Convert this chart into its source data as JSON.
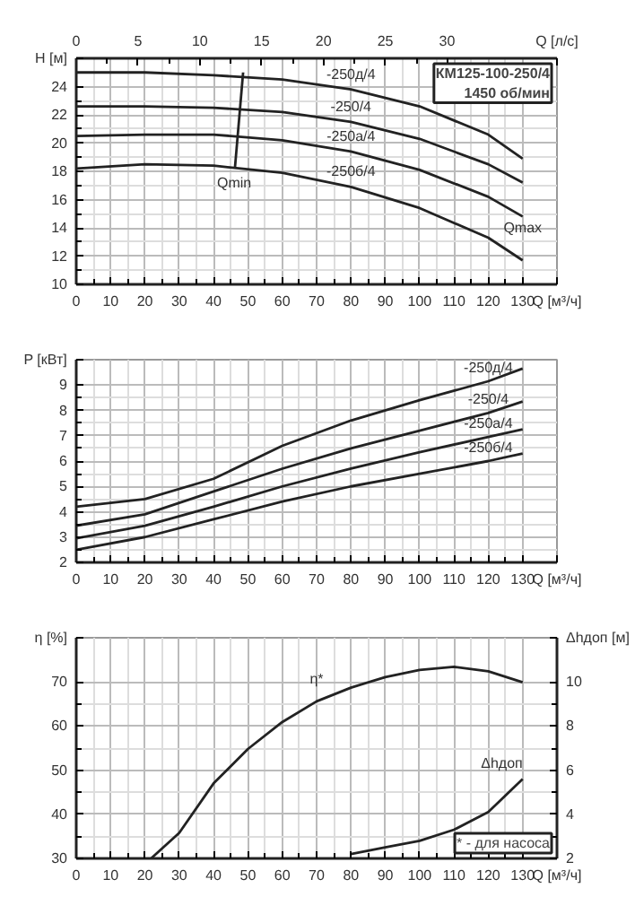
{
  "chart_data": [
    {
      "type": "line",
      "xlabel": "Q [м³/ч]",
      "ylabel": "H [м]",
      "x2label": "Q [л/с]",
      "xlim": [
        0,
        140
      ],
      "ylim": [
        10,
        26
      ],
      "x2lim": [
        0,
        38.89
      ],
      "xticks": [
        0,
        10,
        20,
        30,
        40,
        50,
        60,
        70,
        80,
        90,
        100,
        110,
        120,
        130
      ],
      "yticks": [
        10,
        12,
        14,
        16,
        18,
        20,
        22,
        24
      ],
      "x2ticks": [
        0,
        5,
        10,
        15,
        20,
        25,
        30
      ],
      "grid": true,
      "annotations": [
        "КМ125-100-250/4\n1450 об/мин",
        {
          "text": "Qmin",
          "x": 46,
          "y": 18
        },
        {
          "text": "Qmax",
          "x": 130,
          "y": 14.8
        }
      ],
      "series": [
        {
          "name": "-250д/4",
          "color": "#222222",
          "x": [
            0,
            20,
            40,
            60,
            80,
            100,
            120,
            130
          ],
          "values": [
            25.0,
            25.0,
            24.8,
            24.5,
            23.8,
            22.6,
            20.6,
            18.9
          ]
        },
        {
          "name": "-250/4",
          "color": "#222222",
          "x": [
            0,
            20,
            40,
            60,
            80,
            100,
            120,
            130
          ],
          "values": [
            22.6,
            22.6,
            22.5,
            22.2,
            21.5,
            20.3,
            18.5,
            17.2
          ]
        },
        {
          "name": "-250а/4",
          "color": "#222222",
          "x": [
            0,
            20,
            40,
            60,
            80,
            100,
            120,
            130
          ],
          "values": [
            20.5,
            20.6,
            20.6,
            20.2,
            19.4,
            18.1,
            16.2,
            14.8
          ]
        },
        {
          "name": "-250б/4",
          "color": "#222222",
          "x": [
            0,
            20,
            40,
            60,
            80,
            100,
            120,
            130
          ],
          "values": [
            18.2,
            18.5,
            18.4,
            17.9,
            16.9,
            15.4,
            13.3,
            11.7
          ]
        },
        {
          "color": "#222222",
          "x": [
            48.6,
            46.2
          ],
          "values": [
            25.0,
            18.2
          ]
        }
      ]
    },
    {
      "type": "line",
      "xlabel": "Q [м³/ч]",
      "ylabel": "P [кВт]",
      "xlim": [
        0,
        140
      ],
      "ylim": [
        2,
        10
      ],
      "xticks": [
        0,
        10,
        20,
        30,
        40,
        50,
        60,
        70,
        80,
        90,
        100,
        110,
        120,
        130
      ],
      "yticks": [
        2,
        3,
        4,
        5,
        6,
        7,
        8,
        9
      ],
      "grid": true,
      "series": [
        {
          "name": "-250д/4",
          "color": "#222222",
          "x": [
            0,
            20,
            40,
            60,
            80,
            100,
            120,
            130
          ],
          "values": [
            4.2,
            4.5,
            5.3,
            6.6,
            7.6,
            8.4,
            9.15,
            9.65
          ]
        },
        {
          "name": "-250/4",
          "color": "#222222",
          "x": [
            0,
            20,
            40,
            60,
            80,
            100,
            120,
            130
          ],
          "values": [
            3.45,
            3.9,
            4.8,
            5.7,
            6.5,
            7.2,
            7.9,
            8.35
          ]
        },
        {
          "name": "-250а/4",
          "color": "#222222",
          "x": [
            0,
            20,
            40,
            60,
            80,
            100,
            120,
            130
          ],
          "values": [
            2.95,
            3.45,
            4.2,
            5.0,
            5.7,
            6.35,
            6.95,
            7.25
          ]
        },
        {
          "name": "-250б/4",
          "color": "#222222",
          "x": [
            0,
            20,
            40,
            60,
            80,
            100,
            120,
            130
          ],
          "values": [
            2.5,
            3.0,
            3.7,
            4.4,
            5.0,
            5.5,
            6.0,
            6.3
          ]
        }
      ]
    },
    {
      "type": "line",
      "xlabel": "Q [м³/ч]",
      "ylabel": "η [%]",
      "y2label": "Δhдоп [м]",
      "xlim": [
        0,
        140
      ],
      "ylim": [
        30,
        80
      ],
      "y2lim": [
        2,
        12
      ],
      "xticks": [
        0,
        10,
        20,
        30,
        40,
        50,
        60,
        70,
        80,
        90,
        100,
        110,
        120,
        130
      ],
      "yticks": [
        30,
        40,
        50,
        60,
        70
      ],
      "y2ticks": [
        2,
        4,
        6,
        8,
        10
      ],
      "grid": true,
      "annotations": [
        "* - для насоса"
      ],
      "series": [
        {
          "name": "η*",
          "color": "#222222",
          "x": [
            21.8,
            30,
            40,
            50,
            60,
            70,
            80,
            90,
            100,
            110,
            120,
            130
          ],
          "values": [
            30,
            35.8,
            47,
            54.8,
            60.9,
            65.6,
            68.7,
            71.1,
            72.7,
            73.4,
            72.4,
            69.9
          ]
        },
        {
          "name": "Δhдоп",
          "color": "#222222",
          "axis": "y2",
          "x": [
            80,
            90,
            100,
            110,
            120,
            130
          ],
          "values": [
            2.2,
            2.5,
            2.8,
            3.3,
            4.1,
            5.6
          ]
        }
      ]
    }
  ]
}
